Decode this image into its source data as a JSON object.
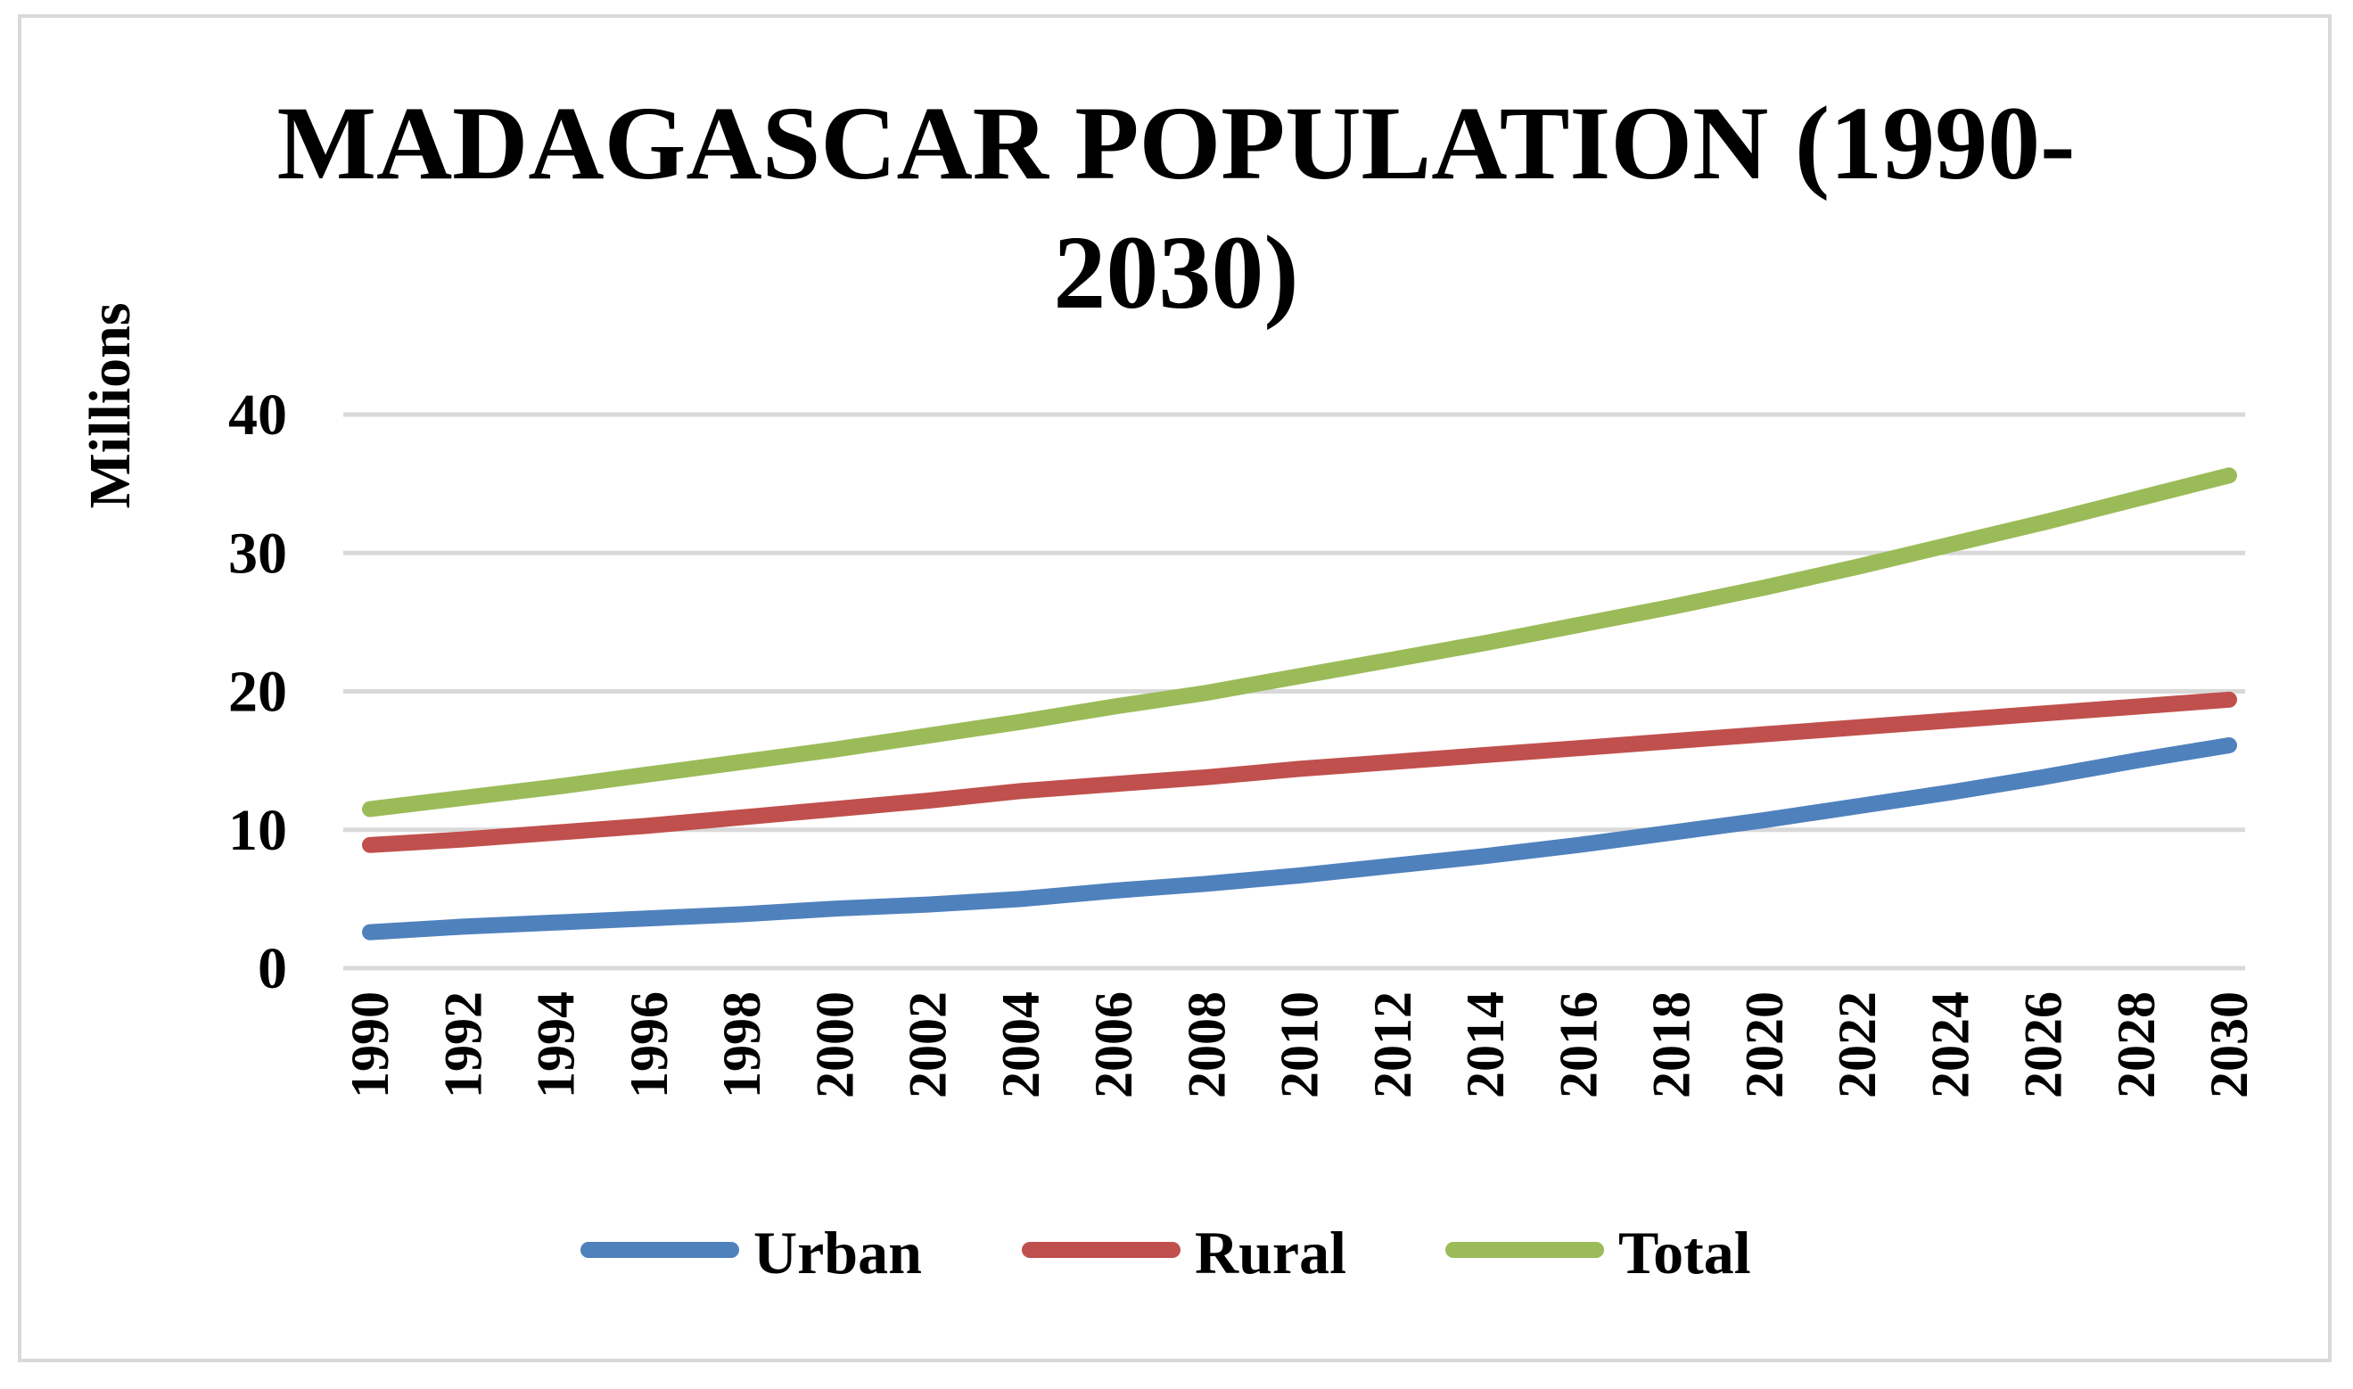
{
  "chart_data": {
    "type": "line",
    "title_lines": [
      "MADAGASCAR POPULATION (1990-",
      "2030)"
    ],
    "ylabel": "Millions",
    "xlabel": "",
    "ylim": [
      0,
      40
    ],
    "yticks": [
      0,
      10,
      20,
      30,
      40
    ],
    "x": [
      "1990",
      "1992",
      "1994",
      "1996",
      "1998",
      "2000",
      "2002",
      "2004",
      "2006",
      "2008",
      "2010",
      "2012",
      "2014",
      "2016",
      "2018",
      "2020",
      "2022",
      "2024",
      "2026",
      "2028",
      "2030"
    ],
    "grid": true,
    "legend_position": "bottom",
    "series": [
      {
        "name": "Urban",
        "color": "#4f81bd",
        "values": [
          2.6,
          3.0,
          3.3,
          3.6,
          3.9,
          4.3,
          4.6,
          5.0,
          5.6,
          6.1,
          6.7,
          7.4,
          8.1,
          8.9,
          9.8,
          10.7,
          11.7,
          12.7,
          13.8,
          15.0,
          16.1
        ]
      },
      {
        "name": "Rural",
        "color": "#c0504d",
        "values": [
          8.9,
          9.3,
          9.8,
          10.3,
          10.9,
          11.5,
          12.1,
          12.8,
          13.3,
          13.8,
          14.4,
          14.9,
          15.4,
          15.9,
          16.4,
          16.9,
          17.4,
          17.9,
          18.4,
          18.9,
          19.4
        ]
      },
      {
        "name": "Total",
        "color": "#9bbb59",
        "values": [
          11.5,
          12.3,
          13.1,
          14.0,
          14.9,
          15.8,
          16.8,
          17.8,
          18.9,
          19.9,
          21.1,
          22.3,
          23.5,
          24.8,
          26.1,
          27.5,
          29.0,
          30.6,
          32.2,
          33.9,
          35.6
        ]
      }
    ]
  }
}
